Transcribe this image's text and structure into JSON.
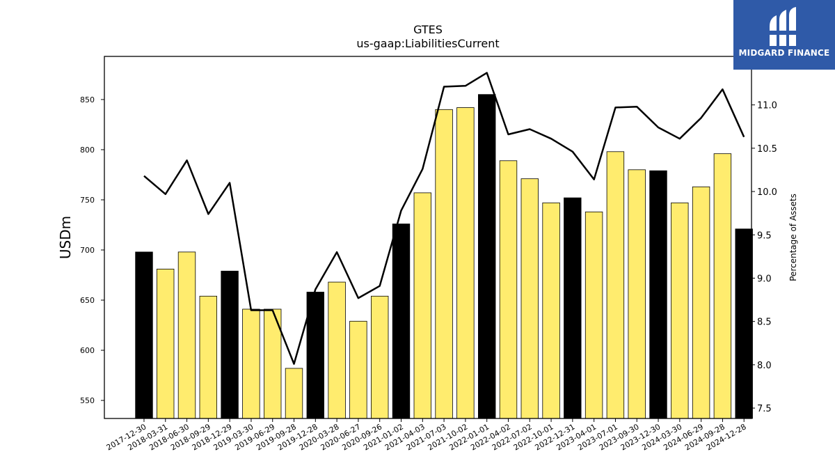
{
  "chart_data": {
    "type": "bar",
    "title": "GTES",
    "subtitle": "us-gaap:LiabilitiesCurrent",
    "ylabel": "USDm",
    "y2label": "Percentage of Assets",
    "ylim": [
      532,
      893
    ],
    "y2lim": [
      7.38,
      11.56
    ],
    "yticks": [
      550,
      600,
      650,
      700,
      750,
      800,
      850
    ],
    "y2ticks": [
      7.5,
      8.0,
      8.5,
      9.0,
      9.5,
      10.0,
      10.5,
      11.0
    ],
    "categories": [
      "2017-12-30",
      "2018-03-31",
      "2018-06-30",
      "2018-09-29",
      "2018-12-29",
      "2019-03-30",
      "2019-06-29",
      "2019-09-28",
      "2019-12-28",
      "2020-03-28",
      "2020-06-27",
      "2020-09-26",
      "2021-01-02",
      "2021-04-03",
      "2021-07-03",
      "2021-10-02",
      "2022-01-01",
      "2022-04-02",
      "2022-07-02",
      "2022-10-01",
      "2022-12-31",
      "2023-04-01",
      "2023-07-01",
      "2023-09-30",
      "2023-12-30",
      "2024-03-30",
      "2024-06-29",
      "2024-09-28",
      "2024-12-28"
    ],
    "series": [
      {
        "type": "bar",
        "values": [
          698,
          681,
          698,
          654,
          679,
          641,
          641,
          582,
          658,
          668,
          629,
          654,
          726,
          757,
          840,
          842,
          855,
          789,
          771,
          747,
          752,
          738,
          798,
          780,
          779,
          747,
          763,
          796,
          721
        ],
        "highlight": [
          true,
          false,
          false,
          false,
          true,
          false,
          false,
          false,
          true,
          false,
          false,
          false,
          true,
          false,
          false,
          false,
          true,
          false,
          false,
          false,
          true,
          false,
          false,
          false,
          true,
          false,
          false,
          false,
          true
        ]
      },
      {
        "type": "line",
        "axis": "right",
        "values": [
          10.18,
          9.97,
          10.36,
          9.74,
          10.1,
          8.63,
          8.63,
          8.01,
          8.87,
          9.3,
          8.77,
          8.91,
          9.78,
          10.26,
          11.21,
          11.22,
          11.37,
          10.66,
          10.72,
          10.61,
          10.46,
          10.14,
          10.97,
          10.98,
          10.74,
          10.61,
          10.85,
          11.18,
          10.63
        ]
      }
    ],
    "colors": {
      "bar": "#ffec6e",
      "highlight": "#000000",
      "line": "#000000"
    },
    "grid": false
  },
  "logo": {
    "text": "MIDGARD FINANCE"
  }
}
